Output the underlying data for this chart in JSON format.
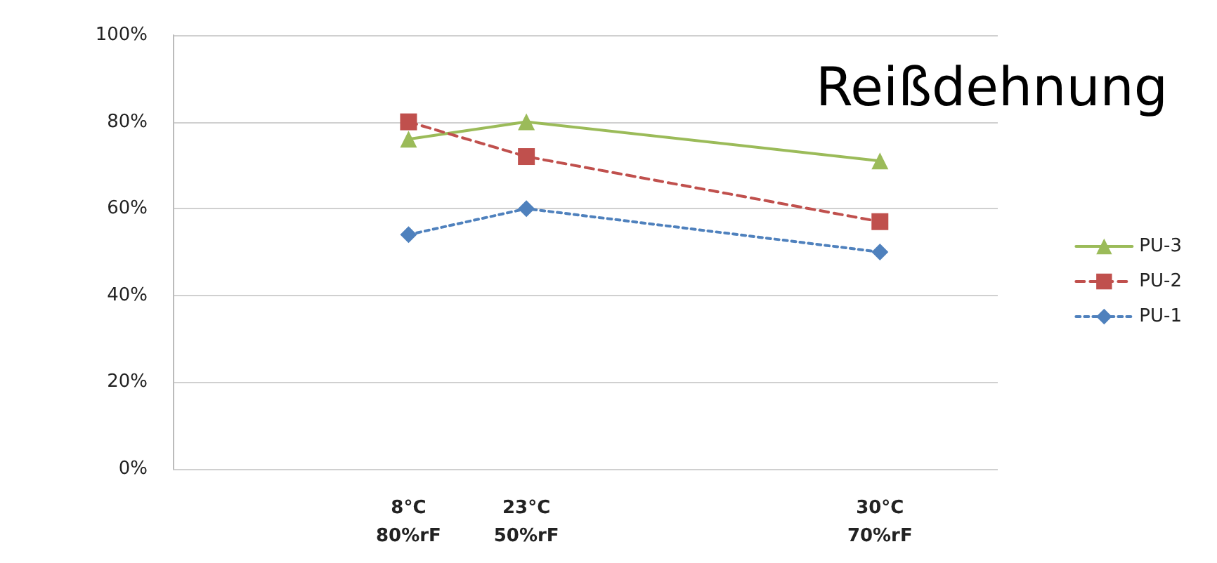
{
  "chart_data": {
    "type": "line",
    "title": "Reißdehnung",
    "categories": [
      null,
      null,
      "8°C\n80%rF",
      "23°C\n50%rF",
      null,
      null,
      "30°C\n70%rF",
      null
    ],
    "series": [
      {
        "name": "PU-3",
        "color": "#9bbb59",
        "marker": "triangle",
        "line_style": "solid",
        "values": [
          null,
          null,
          76,
          80,
          null,
          null,
          71,
          null
        ]
      },
      {
        "name": "PU-2",
        "color": "#c0504d",
        "marker": "square",
        "line_style": "dashed",
        "values": [
          null,
          null,
          80,
          72,
          null,
          null,
          57,
          null
        ]
      },
      {
        "name": "PU-1",
        "color": "#4f81bd",
        "marker": "diamond",
        "line_style": "dotted",
        "values": [
          null,
          null,
          54,
          60,
          null,
          null,
          50,
          null
        ]
      }
    ],
    "ylim": [
      0,
      100
    ],
    "yticks": [
      {
        "value": 0,
        "label": "0%"
      },
      {
        "value": 20,
        "label": "20%"
      },
      {
        "value": 40,
        "label": "40%"
      },
      {
        "value": 60,
        "label": "60%"
      },
      {
        "value": 80,
        "label": "80%"
      },
      {
        "value": 100,
        "label": "100%"
      }
    ],
    "grid": "y",
    "legend": "right"
  }
}
